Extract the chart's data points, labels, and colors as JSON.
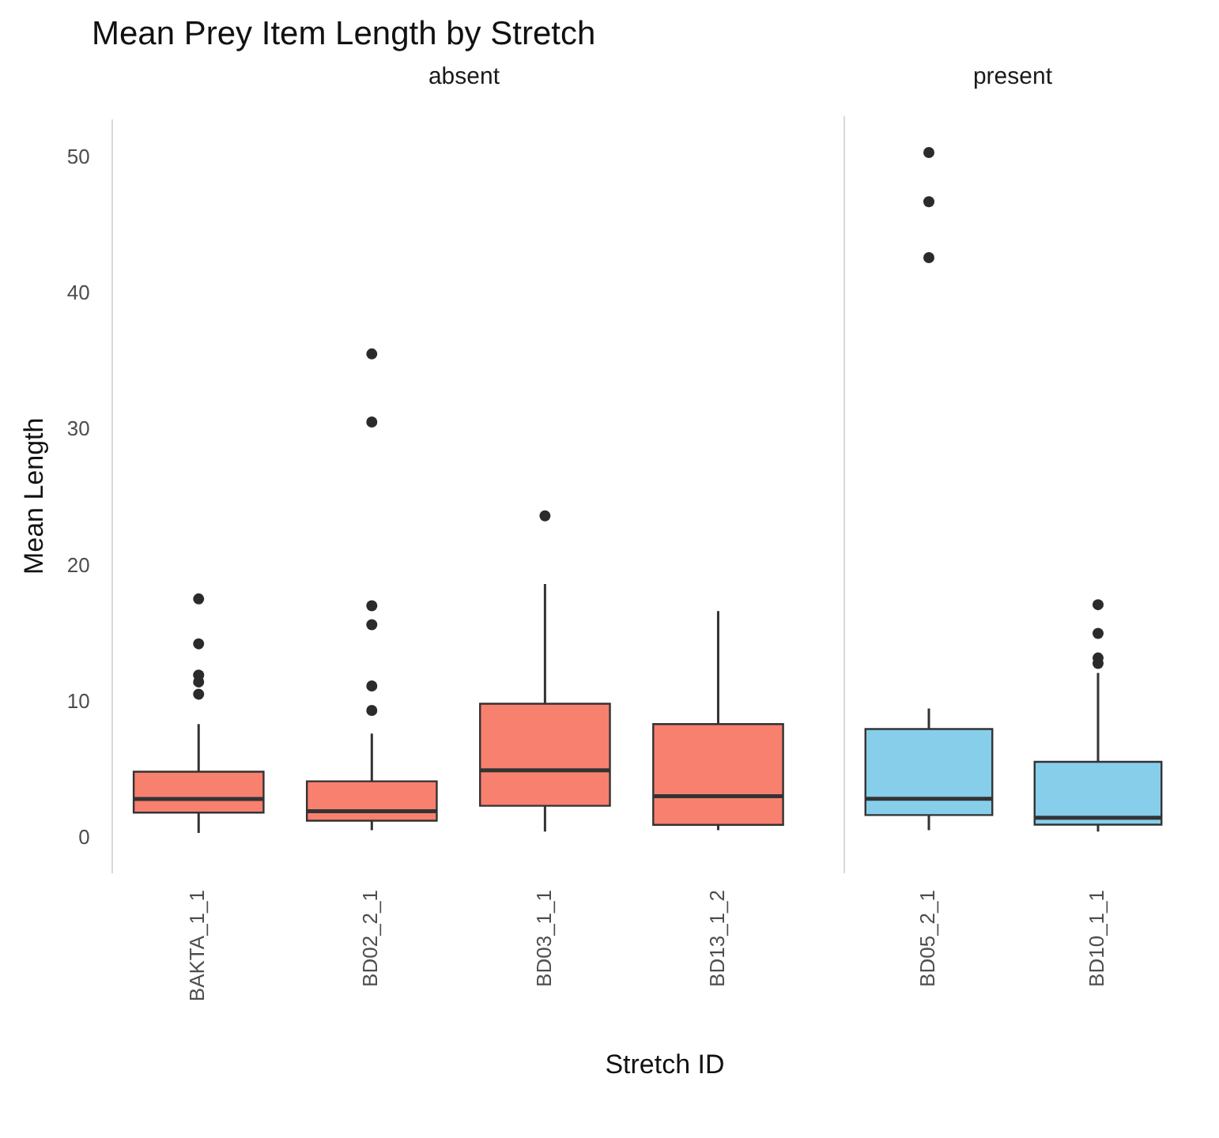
{
  "chart_data": [
    {
      "type": "box",
      "title": "Mean Prey Item Length by Stretch",
      "subtitle": "absent",
      "ylabel": "Mean Length",
      "xlabel": "Stretch ID",
      "categories": [
        "BAKTA_1_1",
        "BD02_2_1",
        "BD03_1_1",
        "BD13_1_2"
      ],
      "series": [
        {
          "color": "#f8806f",
          "boxes": [
            {
              "low": 0.4,
              "q1": 1.9,
              "median": 2.9,
              "q3": 4.9,
              "high": 8.4,
              "outliers": [
                10.6,
                11.5,
                12.0,
                14.3,
                17.6
              ]
            },
            {
              "low": 0.6,
              "q1": 1.3,
              "median": 2.0,
              "q3": 4.2,
              "high": 7.7,
              "outliers": [
                9.4,
                11.2,
                15.7,
                17.1,
                30.6,
                35.6
              ]
            },
            {
              "low": 0.5,
              "q1": 2.4,
              "median": 5.0,
              "q3": 9.9,
              "high": 18.7,
              "outliers": [
                23.7
              ]
            },
            {
              "low": 0.6,
              "q1": 1.0,
              "median": 3.1,
              "q3": 8.4,
              "high": 16.7
            }
          ]
        }
      ],
      "ylim": [
        -2.5,
        52.8
      ],
      "yticks": [
        0,
        10,
        20,
        30,
        40,
        50
      ]
    },
    {
      "type": "box",
      "subtitle": "present",
      "categories": [
        "BD05_2_1",
        "BD10_1_1"
      ],
      "series": [
        {
          "color": "#87ceeb",
          "boxes": [
            {
              "low": 0.6,
              "q1": 1.7,
              "median": 2.9,
              "q3": 8.0,
              "high": 9.5,
              "outliers": [
                42.5,
                46.6,
                50.2
              ]
            },
            {
              "low": 0.5,
              "q1": 1.0,
              "median": 1.5,
              "q3": 5.6,
              "high": 12.1,
              "outliers": [
                12.8,
                13.2,
                15.0,
                17.1
              ]
            }
          ]
        }
      ],
      "ylim": [
        -2.5,
        52.8
      ],
      "yticks": [
        0,
        10,
        20,
        30,
        40,
        50
      ],
      "tick_labels": "x"
    }
  ]
}
